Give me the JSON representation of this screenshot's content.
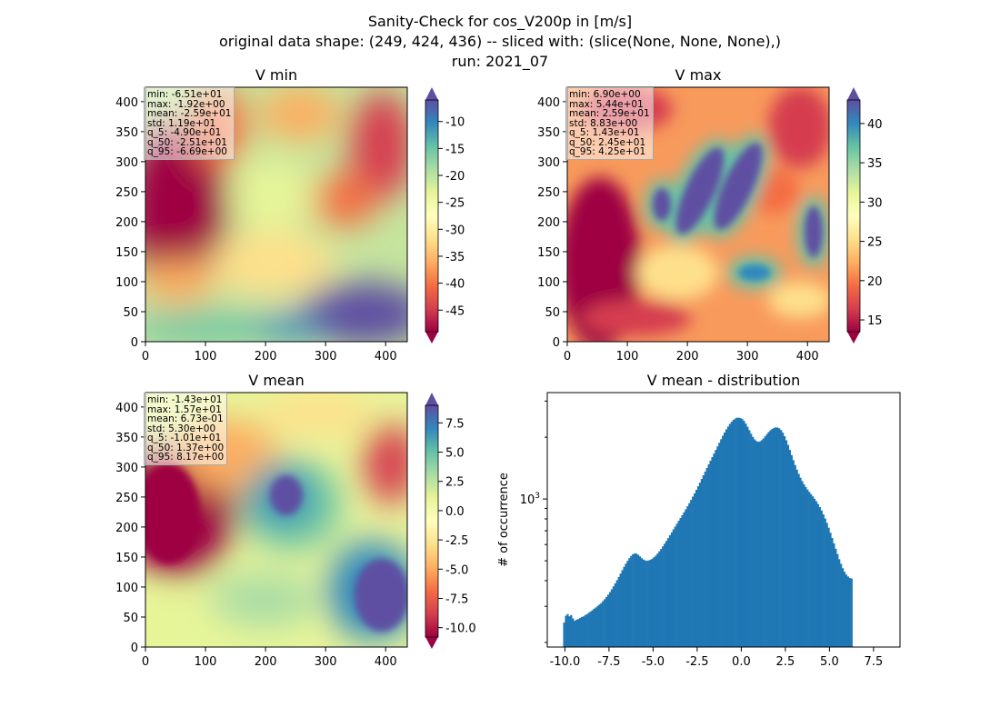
{
  "title_lines": [
    "Sanity-Check for cos_V200p in [m/s]",
    "original data shape: (249, 424, 436) -- sliced with: (slice(None, None, None),)",
    "run: 2021_07"
  ],
  "colormap": "Spectral",
  "colors": {
    "spectral": [
      "#9e0142",
      "#d53e4f",
      "#f46d43",
      "#fdae61",
      "#fee08b",
      "#ffffbf",
      "#e6f598",
      "#abdda4",
      "#66c2a5",
      "#3288bd",
      "#5e4fa2"
    ],
    "bar": "#1f77b4"
  },
  "panels": [
    {
      "title": "V min",
      "x_ticks": [
        "0",
        "100",
        "200",
        "300",
        "400"
      ],
      "y_ticks": [
        "0",
        "50",
        "100",
        "150",
        "200",
        "250",
        "300",
        "350",
        "400"
      ],
      "colorbar_ticks": [
        "-10",
        "-15",
        "-20",
        "-25",
        "-30",
        "-35",
        "-40",
        "-45"
      ],
      "colorbar_range": [
        -49,
        -6
      ],
      "stats": [
        "min: -6.51e+01",
        "max: -1.92e+00",
        "mean: -2.59e+01",
        "std: 1.19e+01",
        "q_5: -4.90e+01",
        "q_50: -2.51e+01",
        "q_95: -6.69e+00"
      ]
    },
    {
      "title": "V max",
      "x_ticks": [
        "0",
        "100",
        "200",
        "300",
        "400"
      ],
      "y_ticks": [
        "0",
        "50",
        "100",
        "150",
        "200",
        "250",
        "300",
        "350",
        "400"
      ],
      "colorbar_ticks": [
        "15",
        "20",
        "25",
        "30",
        "35",
        "40"
      ],
      "colorbar_range": [
        13.5,
        43
      ],
      "stats": [
        "min: 6.90e+00",
        "max: 5.44e+01",
        "mean: 2.59e+01",
        "std: 8.83e+00",
        "q_5: 1.43e+01",
        "q_50: 2.45e+01",
        "q_95: 4.25e+01"
      ]
    },
    {
      "title": "V mean",
      "x_ticks": [
        "0",
        "100",
        "200",
        "300",
        "400"
      ],
      "y_ticks": [
        "0",
        "50",
        "100",
        "150",
        "200",
        "250",
        "300",
        "350",
        "400"
      ],
      "colorbar_ticks": [
        "7.5",
        "5.0",
        "2.5",
        "0.0",
        "-2.5",
        "-5.0",
        "-7.5",
        "-10.0"
      ],
      "colorbar_range": [
        -10.8,
        9
      ],
      "stats": [
        "min: -1.43e+01",
        "max: 1.57e+01",
        "mean: 6.73e-01",
        "std: 5.30e+00",
        "q_5: -1.01e+01",
        "q_50: 1.37e+00",
        "q_95: 8.17e+00"
      ]
    }
  ],
  "chart_data": {
    "type": "bar",
    "title": "V mean - distribution",
    "xlabel": "",
    "ylabel": "# of occurrence",
    "y_scale": "log",
    "ylim": [
      190,
      3300
    ],
    "xlim": [
      -11.0,
      9.0
    ],
    "x_ticks": [
      "-10.0",
      "-7.5",
      "-5.0",
      "-2.5",
      "0.0",
      "2.5",
      "5.0",
      "7.5"
    ],
    "y_tick_labels": [
      "10^3"
    ],
    "bin_start": -10.1,
    "bin_width": 0.1,
    "values": [
      250,
      270,
      275,
      268,
      272,
      262,
      255,
      258,
      260,
      263,
      266,
      268,
      272,
      275,
      279,
      283,
      287,
      292,
      296,
      301,
      306,
      311,
      318,
      325,
      333,
      342,
      352,
      363,
      375,
      388,
      402,
      417,
      433,
      450,
      467,
      484,
      500,
      515,
      528,
      538,
      543,
      542,
      535,
      525,
      515,
      507,
      502,
      500,
      502,
      506,
      512,
      520,
      530,
      542,
      556,
      571,
      588,
      606,
      625,
      645,
      666,
      688,
      711,
      734,
      758,
      783,
      808,
      834,
      862,
      891,
      922,
      955,
      990,
      1027,
      1066,
      1108,
      1153,
      1201,
      1252,
      1305,
      1360,
      1417,
      1476,
      1537,
      1600,
      1665,
      1733,
      1804,
      1879,
      1955,
      2034,
      2109,
      2185,
      2254,
      2322,
      2378,
      2430,
      2464,
      2488,
      2490,
      2478,
      2452,
      2401,
      2330,
      2248,
      2163,
      2080,
      2008,
      1951,
      1915,
      1900,
      1907,
      1933,
      1972,
      2020,
      2071,
      2120,
      2162,
      2196,
      2220,
      2232,
      2230,
      2209,
      2167,
      2104,
      2023,
      1932,
      1834,
      1734,
      1637,
      1546,
      1463,
      1390,
      1326,
      1270,
      1222,
      1180,
      1144,
      1112,
      1083,
      1056,
      1030,
      1003,
      975,
      945,
      913,
      879,
      842,
      804,
      765,
      725,
      685,
      646,
      608,
      572,
      539,
      509,
      483,
      460,
      442,
      428,
      419,
      412,
      410
    ]
  }
}
